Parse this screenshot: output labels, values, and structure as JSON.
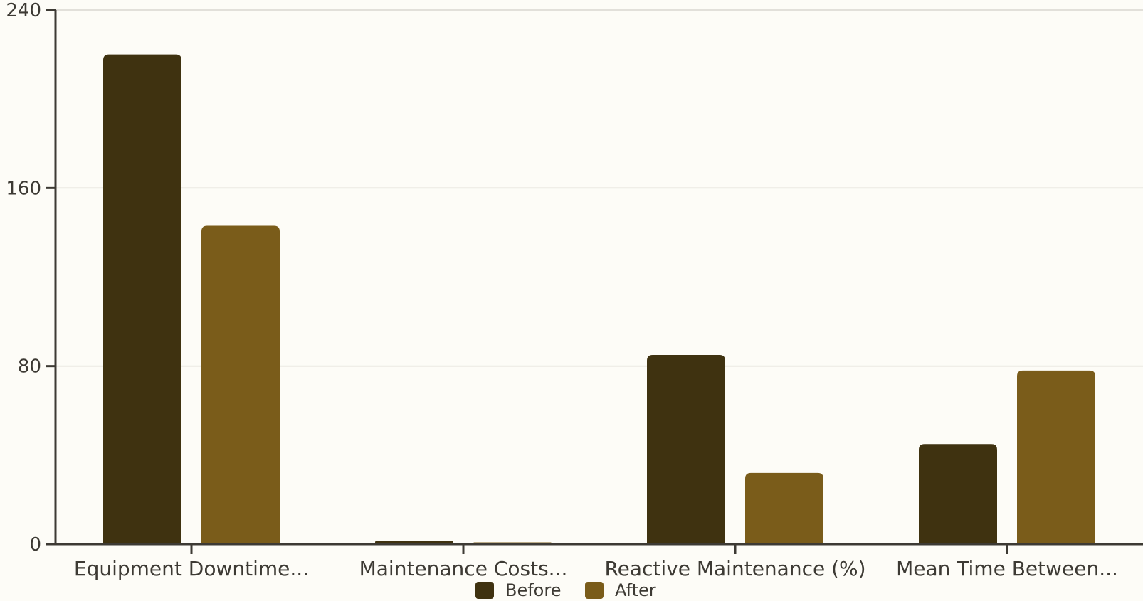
{
  "chart_data": {
    "type": "bar",
    "categories": [
      "Equipment Downtime...",
      "Maintenance Costs...",
      "Reactive Maintenance (%)",
      "Mean Time Between..."
    ],
    "series": [
      {
        "name": "Before",
        "color": "#3f3210",
        "values": [
          220,
          1.5,
          85,
          45
        ]
      },
      {
        "name": "After",
        "color": "#7a5c1a",
        "values": [
          143,
          0.8,
          32,
          78
        ]
      }
    ],
    "y_ticks": [
      0,
      80,
      160,
      240
    ],
    "ylim": [
      0,
      240
    ],
    "grid": true,
    "legend_position": "bottom-center",
    "colors": {
      "background": "#fdfcf7",
      "grid": "#d9d7d0",
      "axis": "#3d3a34"
    }
  }
}
